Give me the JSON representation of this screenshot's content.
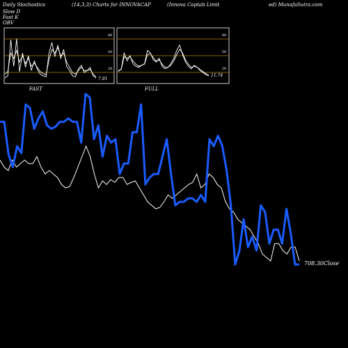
{
  "header": {
    "left": "Daily Stochastics",
    "middle": "(14,3,3) Charts for INNOVACAP",
    "right_a": "(Innova  Captab Limit",
    "right_b": "ed) MunafaSutra.com"
  },
  "legend": [
    {
      "label": "Slow  D",
      "color": "#ffffff"
    },
    {
      "label": "Fast K",
      "color": "#ffffff"
    },
    {
      "label": "OBV",
      "color": "#1a5cff"
    }
  ],
  "colors": {
    "obv": "#1a5cff",
    "close": "#ffffff",
    "level": "#b8860b",
    "background": "#000000"
  },
  "chart_data": [
    {
      "type": "line",
      "title": "FAST",
      "ylim": [
        0,
        100
      ],
      "levels": [
        20,
        50,
        80
      ],
      "level_labels": [
        "20",
        "50",
        "80"
      ],
      "last_value_label": "7.91",
      "series": [
        {
          "values": [
            8,
            12,
            80,
            30,
            82,
            20,
            55,
            28,
            50,
            22,
            40,
            25,
            15,
            12,
            10,
            55,
            75,
            48,
            70,
            45,
            62,
            30,
            22,
            12,
            10,
            25,
            32,
            18,
            22,
            28,
            12,
            8
          ]
        },
        {
          "values": [
            15,
            20,
            55,
            45,
            60,
            38,
            50,
            35,
            45,
            30,
            36,
            28,
            20,
            16,
            14,
            42,
            62,
            55,
            65,
            50,
            55,
            38,
            28,
            18,
            15,
            22,
            28,
            22,
            22,
            24,
            15,
            10
          ]
        }
      ]
    },
    {
      "type": "line",
      "title": "FULL",
      "ylim": [
        0,
        100
      ],
      "levels": [
        20,
        50,
        80
      ],
      "level_labels": [
        "20",
        "50",
        "80"
      ],
      "last_value_label": "11.74",
      "series": [
        {
          "values": [
            20,
            25,
            55,
            40,
            50,
            35,
            30,
            28,
            32,
            35,
            60,
            55,
            42,
            38,
            45,
            30,
            25,
            28,
            35,
            45,
            60,
            70,
            52,
            38,
            30,
            25,
            32,
            28,
            22,
            18,
            14,
            12
          ]
        },
        {
          "values": [
            22,
            24,
            48,
            45,
            48,
            40,
            34,
            30,
            32,
            34,
            52,
            54,
            46,
            40,
            42,
            34,
            28,
            28,
            32,
            40,
            52,
            62,
            55,
            42,
            34,
            28,
            30,
            28,
            24,
            20,
            16,
            13
          ]
        }
      ]
    },
    {
      "type": "line",
      "last_close_label": "708.30",
      "close_suffix": "Close",
      "series": [
        {
          "name": "OBV",
          "values": [
            175,
            175,
            222,
            240,
            210,
            220,
            150,
            155,
            185,
            170,
            160,
            180,
            185,
            182,
            175,
            175,
            170,
            175,
            175,
            205,
            135,
            140,
            200,
            180,
            225,
            195,
            205,
            200,
            250,
            235,
            235,
            190,
            190,
            150,
            265,
            255,
            250,
            250,
            225,
            200,
            250,
            295,
            290,
            290,
            285,
            285,
            290,
            280,
            290,
            200,
            210,
            195,
            210,
            245,
            295,
            380,
            360,
            315,
            355,
            340,
            360,
            295,
            305,
            350,
            330,
            330,
            350,
            300,
            335,
            380,
            380
          ]
        },
        {
          "name": "Close",
          "values": [
            230,
            240,
            245,
            230,
            240,
            235,
            230,
            235,
            235,
            225,
            240,
            250,
            245,
            250,
            255,
            265,
            270,
            268,
            255,
            240,
            225,
            210,
            225,
            250,
            270,
            260,
            265,
            258,
            262,
            255,
            255,
            265,
            262,
            260,
            270,
            280,
            290,
            295,
            300,
            298,
            290,
            280,
            285,
            280,
            275,
            270,
            265,
            262,
            250,
            270,
            265,
            250,
            255,
            265,
            270,
            290,
            300,
            305,
            315,
            320,
            325,
            330,
            340,
            350,
            365,
            370,
            375,
            350,
            350,
            360,
            365,
            355,
            355,
            375
          ]
        }
      ]
    }
  ]
}
